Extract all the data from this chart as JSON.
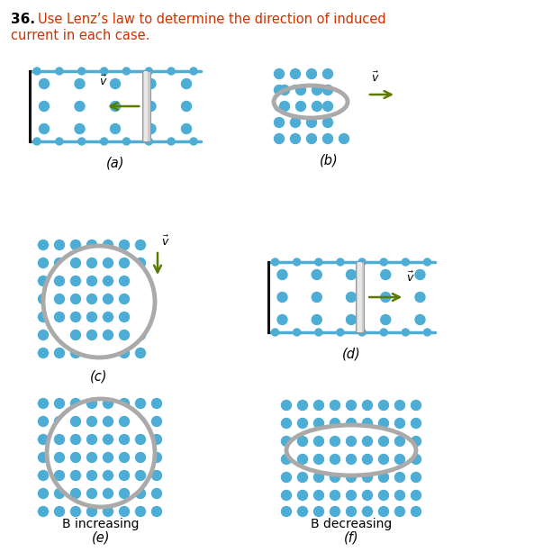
{
  "title_number": "36.",
  "title_text1": "Use Lenz’s law to determine the direction of induced",
  "title_text2": "current in each case.",
  "dot_color": "#4dadd4",
  "rail_color": "#4dadd4",
  "frame_color": "#111111",
  "arrow_color": "#5a7a00",
  "circle_color": "#aaaaaa",
  "circle_lw": 3.5,
  "bg_color": "#ffffff",
  "dot_r": 5.5,
  "rail_dot_r": 4.0,
  "labels": [
    "(a)",
    "(b)",
    "(c)",
    "(d)",
    "(e)",
    "(f)"
  ],
  "sub_b_increasing": "B increasing",
  "sub_b_decreasing": "B decreasing",
  "title_color": "#cc3300",
  "label_color": "#000000"
}
